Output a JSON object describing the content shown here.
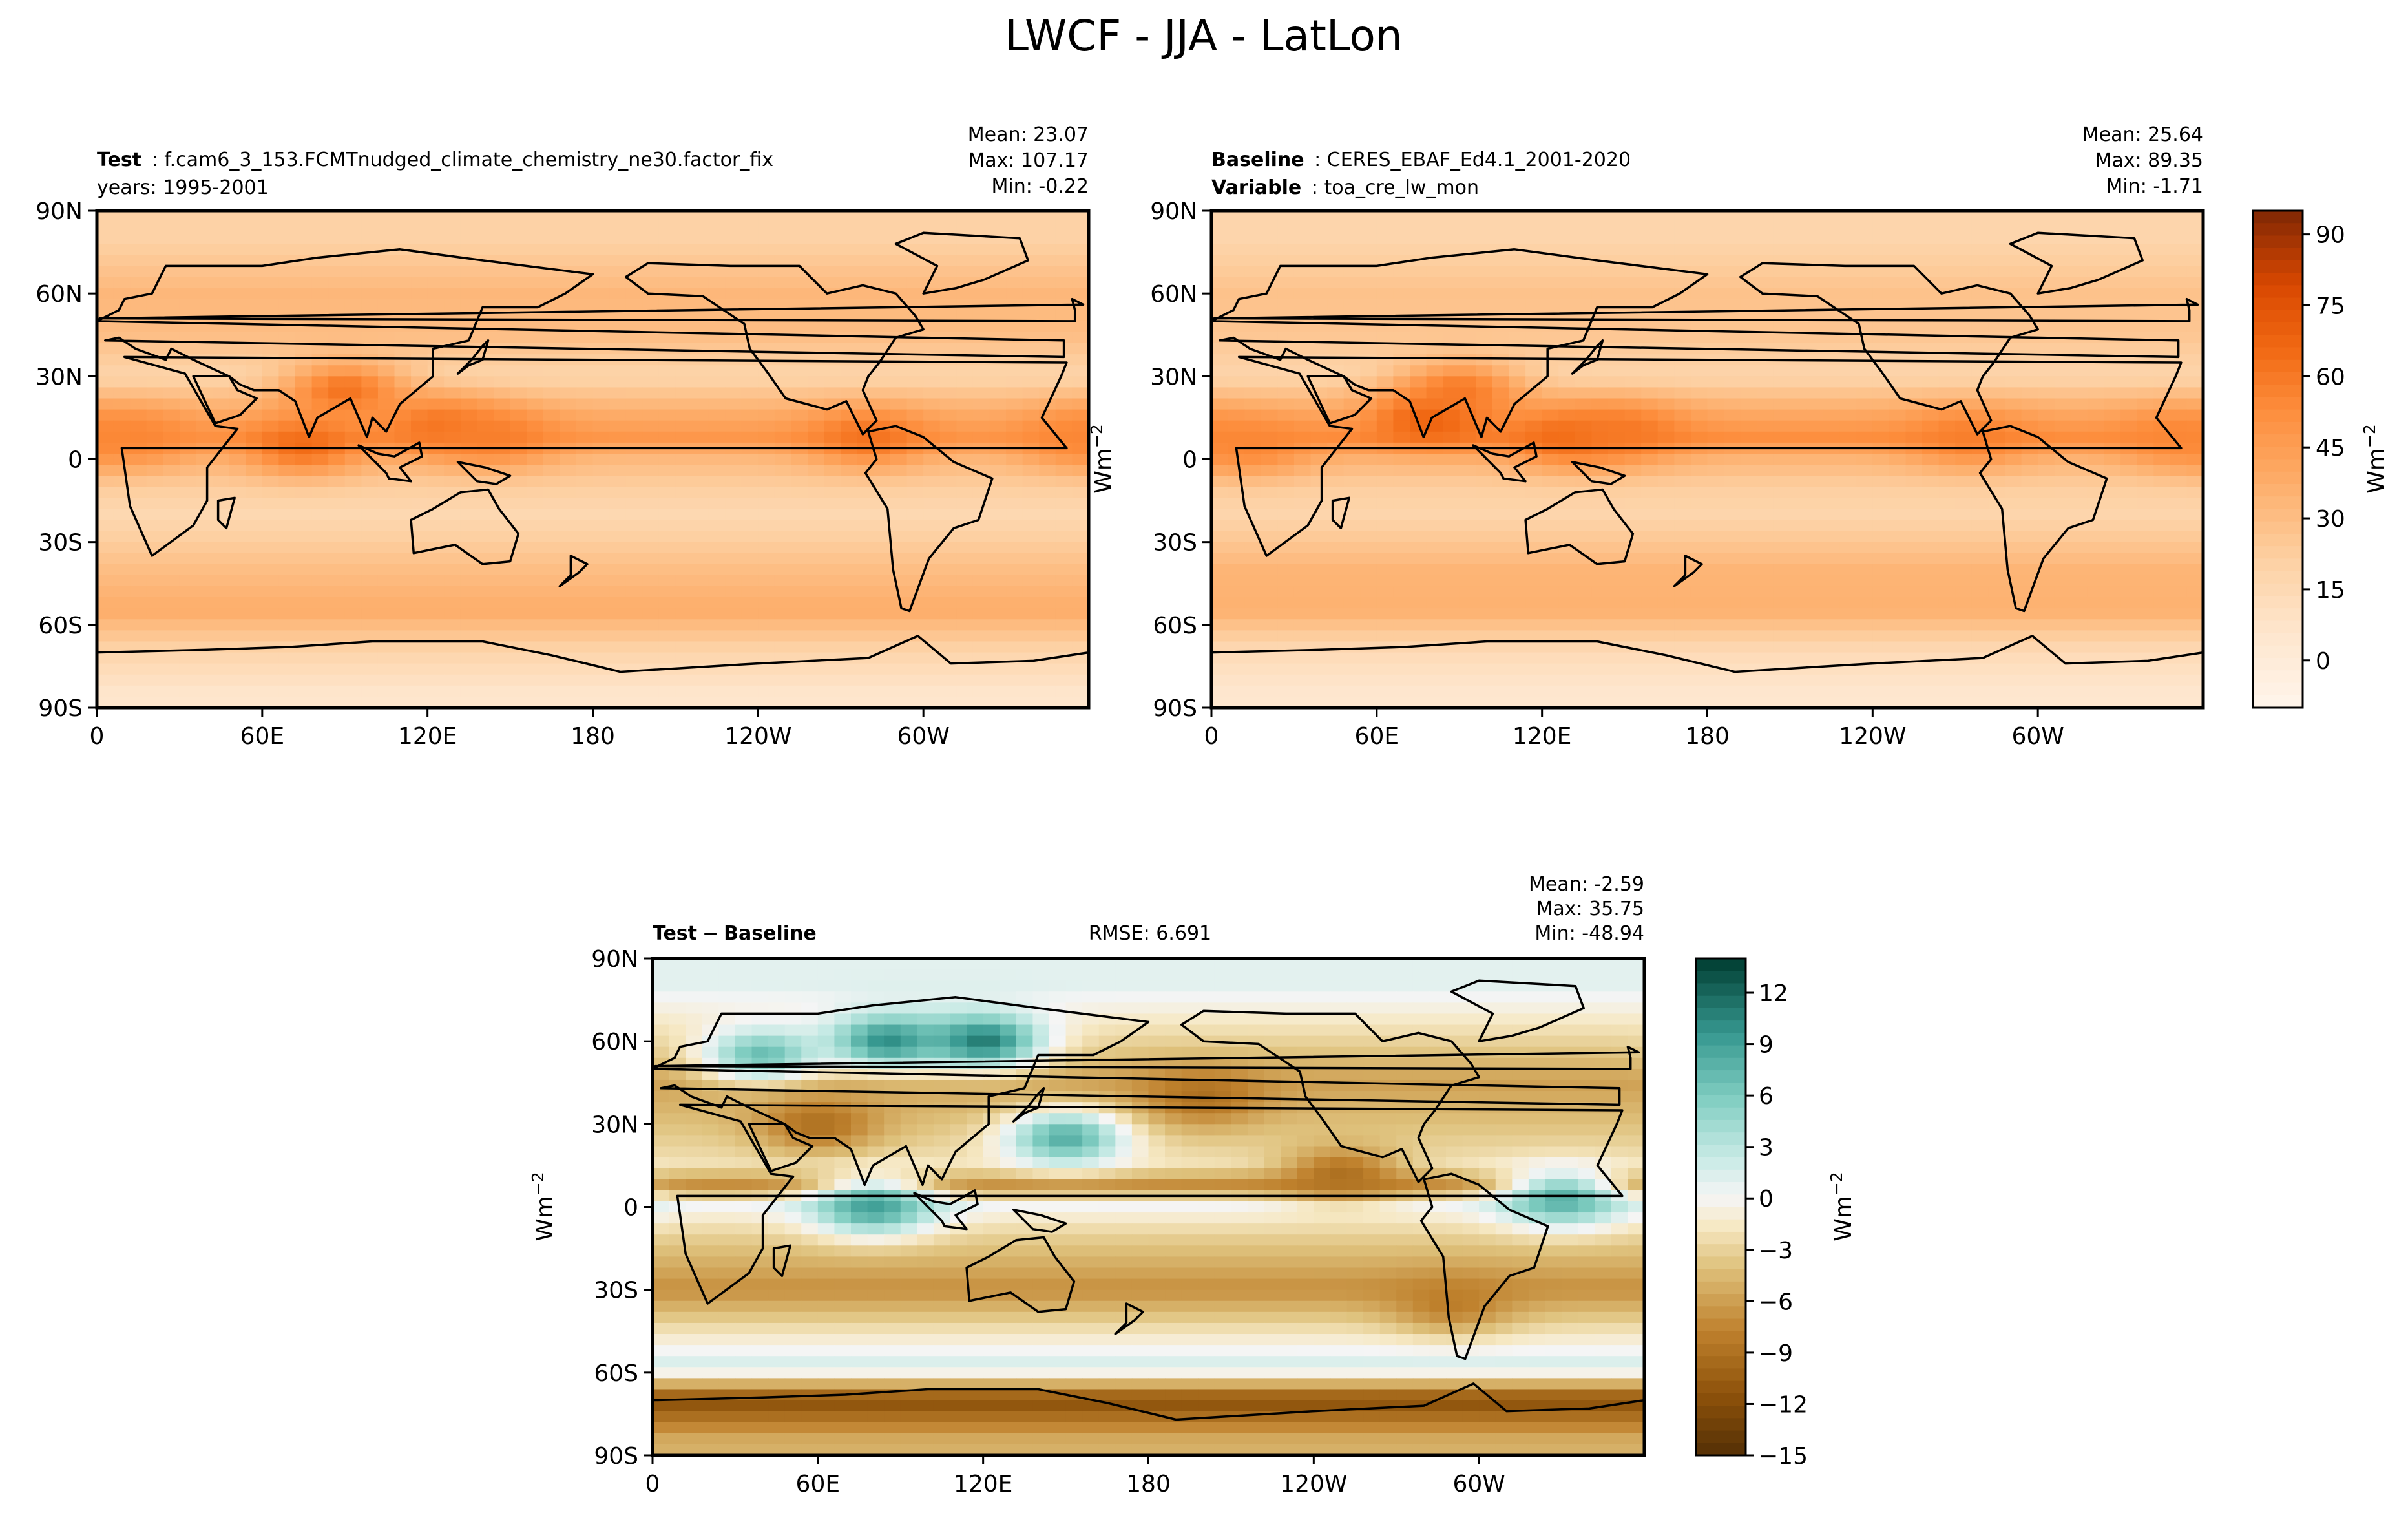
{
  "figure": {
    "title": "LWCF - JJA - LatLon"
  },
  "chart_data": [
    {
      "type": "heatmap",
      "panel": "test",
      "header_label": "Test",
      "header_value": "f.cam6_3_153.FCMTnudged_climate_chemistry_ne30.factor_fix",
      "subheader": "years: 1995-2001",
      "stats": [
        "Mean: 23.07",
        "Max: 107.17",
        "Min: -0.22"
      ],
      "x_ticks": [
        "0",
        "60E",
        "120E",
        "180",
        "120W",
        "60W"
      ],
      "x_tick_values": [
        0,
        60,
        120,
        180,
        240,
        300
      ],
      "xlim": [
        0,
        360
      ],
      "y_ticks": [
        "90N",
        "60N",
        "30N",
        "0",
        "30S",
        "60S",
        "90S"
      ],
      "y_tick_values": [
        90,
        60,
        30,
        0,
        -30,
        -60,
        -90
      ],
      "ylim": [
        -90,
        90
      ],
      "colormap": "Oranges",
      "zlim": [
        -10,
        95
      ],
      "zones": [
        {
          "lat": 80,
          "value": 20
        },
        {
          "lat": 60,
          "value": 33
        },
        {
          "lat": 45,
          "value": 30
        },
        {
          "lat": 30,
          "value": 18
        },
        {
          "lat": 15,
          "value": 40
        },
        {
          "lat": 8,
          "value": 48
        },
        {
          "lat": 0,
          "value": 32
        },
        {
          "lat": -10,
          "value": 22
        },
        {
          "lat": -20,
          "value": 16
        },
        {
          "lat": -40,
          "value": 30
        },
        {
          "lat": -55,
          "value": 38
        },
        {
          "lat": -70,
          "value": 18
        },
        {
          "lat": -85,
          "value": 6
        }
      ],
      "hotspots": [
        {
          "lon": 75,
          "lat": 5,
          "value": 65
        },
        {
          "lon": 90,
          "lat": 25,
          "value": 62
        },
        {
          "lon": 125,
          "lat": 12,
          "value": 62
        },
        {
          "lon": 145,
          "lat": 8,
          "value": 58
        },
        {
          "lon": 280,
          "lat": 8,
          "value": 62
        },
        {
          "lon": 15,
          "lat": 8,
          "value": 55
        },
        {
          "lon": 355,
          "lat": 8,
          "value": 55
        }
      ]
    },
    {
      "type": "heatmap",
      "panel": "baseline",
      "header_label": "Baseline",
      "header_value": "CERES_EBAF_Ed4.1_2001-2020",
      "subheader_label": "Variable",
      "subheader_value": "toa_cre_lw_mon",
      "stats": [
        "Mean: 25.64",
        "Max: 89.35",
        "Min: -1.71"
      ],
      "x_ticks": [
        "0",
        "60E",
        "120E",
        "180",
        "120W",
        "60W"
      ],
      "x_tick_values": [
        0,
        60,
        120,
        180,
        240,
        300
      ],
      "xlim": [
        0,
        360
      ],
      "y_ticks": [
        "90N",
        "60N",
        "30N",
        "0",
        "30S",
        "60S",
        "90S"
      ],
      "y_tick_values": [
        90,
        60,
        30,
        0,
        -30,
        -60,
        -90
      ],
      "ylim": [
        -90,
        90
      ],
      "colormap": "Oranges",
      "zlim": [
        -10,
        95
      ],
      "colorbar_ticks": [
        "90",
        "75",
        "60",
        "45",
        "30",
        "15",
        "0"
      ],
      "colorbar_tick_values": [
        90,
        75,
        60,
        45,
        30,
        15,
        0
      ],
      "colorbar_label": "Wm",
      "colorbar_label_exp": "−2",
      "zones": [
        {
          "lat": 80,
          "value": 18
        },
        {
          "lat": 60,
          "value": 28
        },
        {
          "lat": 45,
          "value": 26
        },
        {
          "lat": 30,
          "value": 18
        },
        {
          "lat": 15,
          "value": 42
        },
        {
          "lat": 8,
          "value": 52
        },
        {
          "lat": 0,
          "value": 34
        },
        {
          "lat": -10,
          "value": 22
        },
        {
          "lat": -20,
          "value": 18
        },
        {
          "lat": -40,
          "value": 34
        },
        {
          "lat": -55,
          "value": 36
        },
        {
          "lat": -70,
          "value": 14
        },
        {
          "lat": -85,
          "value": 5
        }
      ],
      "hotspots": [
        {
          "lon": 80,
          "lat": 15,
          "value": 70
        },
        {
          "lon": 90,
          "lat": 25,
          "value": 60
        },
        {
          "lon": 130,
          "lat": 8,
          "value": 66
        },
        {
          "lon": 150,
          "lat": 10,
          "value": 60
        },
        {
          "lon": 275,
          "lat": 8,
          "value": 58
        },
        {
          "lon": 15,
          "lat": 5,
          "value": 55
        },
        {
          "lon": 350,
          "lat": 8,
          "value": 55
        }
      ]
    },
    {
      "type": "heatmap",
      "panel": "difference",
      "header_label": "Test",
      "header_minus": "−",
      "header_label2": "Baseline",
      "rmse": "RMSE: 6.691",
      "stats": [
        "Mean: -2.59",
        "Max: 35.75",
        "Min: -48.94"
      ],
      "x_ticks": [
        "0",
        "60E",
        "120E",
        "180",
        "120W",
        "60W"
      ],
      "x_tick_values": [
        0,
        60,
        120,
        180,
        240,
        300
      ],
      "xlim": [
        0,
        360
      ],
      "y_ticks": [
        "90N",
        "60N",
        "30N",
        "0",
        "30S",
        "60S",
        "90S"
      ],
      "y_tick_values": [
        90,
        60,
        30,
        0,
        -30,
        -60,
        -90
      ],
      "ylim": [
        -90,
        90
      ],
      "ylabel": "Wm",
      "ylabel_exp": "−2",
      "colormap": "BrBG",
      "zlim": [
        -15,
        14
      ],
      "colorbar_ticks": [
        "12",
        "9",
        "6",
        "3",
        "0",
        "−3",
        "−6",
        "−9",
        "−12",
        "−15"
      ],
      "colorbar_tick_values": [
        12,
        9,
        6,
        3,
        0,
        -3,
        -6,
        -9,
        -12,
        -15
      ],
      "colorbar_label": "Wm",
      "colorbar_label_exp": "−2",
      "zones": [
        {
          "lat": 80,
          "value": 1
        },
        {
          "lat": 60,
          "value": -3
        },
        {
          "lat": 45,
          "value": -6
        },
        {
          "lat": 30,
          "value": -4
        },
        {
          "lat": 15,
          "value": -2
        },
        {
          "lat": 8,
          "value": -7
        },
        {
          "lat": 0,
          "value": 0
        },
        {
          "lat": -10,
          "value": -3
        },
        {
          "lat": -30,
          "value": -7
        },
        {
          "lat": -45,
          "value": -2
        },
        {
          "lat": -58,
          "value": 2
        },
        {
          "lat": -70,
          "value": -12
        },
        {
          "lat": -85,
          "value": -5
        }
      ],
      "hotspots": [
        {
          "lon": 85,
          "lat": 60,
          "value": 10
        },
        {
          "lon": 120,
          "lat": 60,
          "value": 11
        },
        {
          "lon": 40,
          "lat": 55,
          "value": 7
        },
        {
          "lon": 150,
          "lat": 25,
          "value": 8
        },
        {
          "lon": 80,
          "lat": 0,
          "value": 9
        },
        {
          "lon": 330,
          "lat": 3,
          "value": 8
        },
        {
          "lon": 250,
          "lat": 12,
          "value": -9
        },
        {
          "lon": 60,
          "lat": 30,
          "value": -9
        },
        {
          "lon": 200,
          "lat": 40,
          "value": -9
        },
        {
          "lon": 290,
          "lat": -35,
          "value": -8
        }
      ]
    }
  ]
}
